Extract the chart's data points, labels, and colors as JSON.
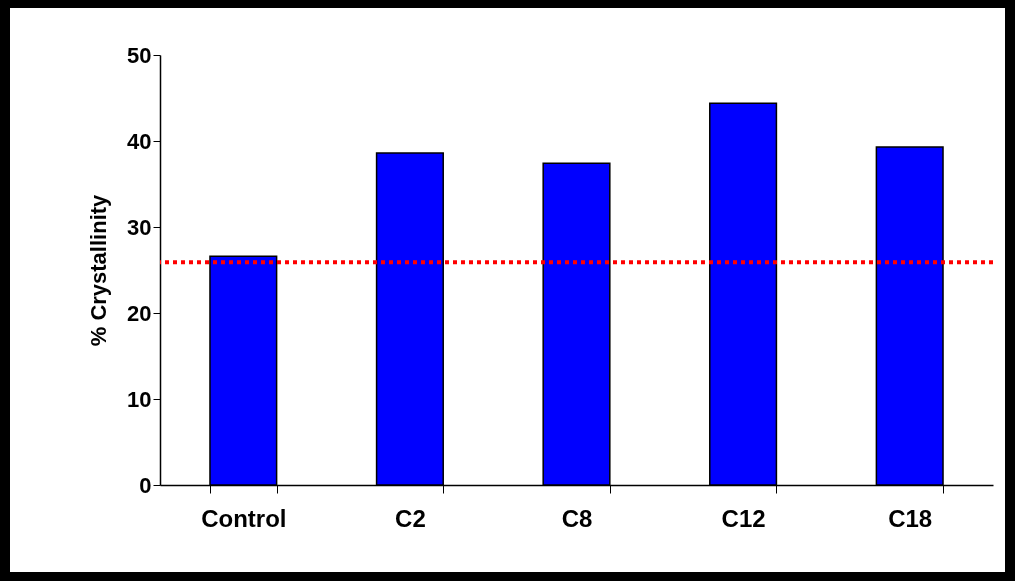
{
  "chart_data": {
    "type": "bar",
    "ylabel": "% Crystallinity",
    "categories": [
      "Control",
      "C2",
      "C8",
      "C12",
      "C18"
    ],
    "series": [
      {
        "color": "#0000ff",
        "values": [
          26.6,
          38.6,
          37.4,
          44.4,
          39.3
        ]
      }
    ],
    "ylim": [
      0,
      50
    ],
    "yticks": [
      0,
      10,
      20,
      30,
      40,
      50
    ],
    "grid": false,
    "ref_lines": [
      {
        "axis": "y",
        "value": 25.9,
        "color": "#ff0000",
        "line_style": "dotted"
      }
    ]
  }
}
